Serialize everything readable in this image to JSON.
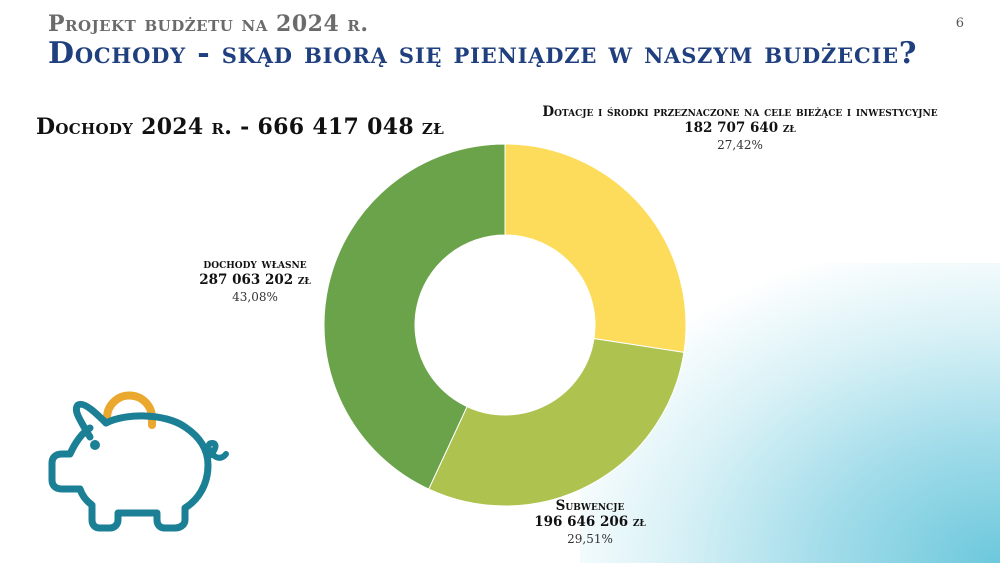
{
  "header": {
    "subtitle": "Projekt budżetu na 2024 r.",
    "title": "Dochody - skąd biorą się pieniądze w naszym budżecie?",
    "page_number": "6"
  },
  "total_label": "Dochody 2024 r. - 666 417 048 zł",
  "chart_data": {
    "type": "pie",
    "donut": true,
    "slices": [
      {
        "name": "Dotacje i środki przeznaczone na cele bieżące i inwestycyjne",
        "value": 182707640,
        "value_label": "182 707 640 zł",
        "percent": 27.42,
        "percent_label": "27,42%",
        "color": "#fcdc5a"
      },
      {
        "name": "Subwencje",
        "value": 196646206,
        "value_label": "196 646 206 zł",
        "percent": 29.51,
        "percent_label": "29,51%",
        "color": "#adc24f"
      },
      {
        "name": "dochody własne",
        "value": 287063202,
        "value_label": "287 063 202 zł",
        "percent": 43.08,
        "percent_label": "43,08%",
        "color": "#6aa34a"
      }
    ]
  },
  "decor": {
    "piggy_icon_color": "#1b7f95",
    "coin_color": "#eaa82e"
  }
}
